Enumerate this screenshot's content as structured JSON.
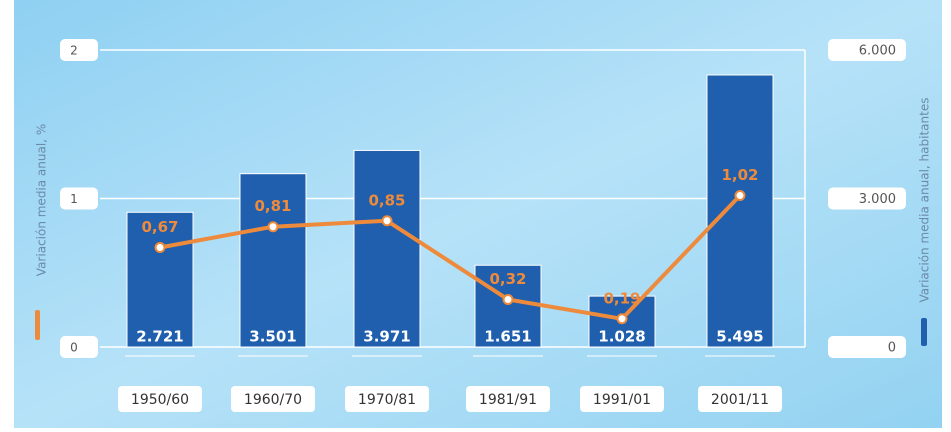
{
  "chart_data": {
    "type": "bar",
    "categories": [
      "1950/60",
      "1960/70",
      "1970/81",
      "1981/91",
      "1991/01",
      "2001/11"
    ],
    "series": [
      {
        "name": "Variación media anual, habitantes",
        "type": "bar",
        "axis": "y2",
        "color": "#1f5fad",
        "values": [
          2721,
          3501,
          3971,
          1651,
          1028,
          5495
        ],
        "value_labels": [
          "2.721",
          "3.501",
          "3.971",
          "1.651",
          "1.028",
          "5.495"
        ]
      },
      {
        "name": "Variación media anual, %",
        "type": "line",
        "color": "#ee8a3c",
        "values": [
          0.67,
          0.81,
          0.85,
          0.32,
          0.19,
          1.02
        ],
        "value_labels": [
          "0,67",
          "0,81",
          "0,85",
          "0,32",
          "0,19",
          "1,02"
        ]
      }
    ],
    "ylabel": "Variación media anual, %",
    "y2label": "Variación media anual, habitantes",
    "ylim": [
      0,
      2
    ],
    "yticks": [
      0,
      1,
      2
    ],
    "y2lim": [
      0,
      6000
    ],
    "y2ticks": [
      0,
      {
        "value": 3000,
        "label": "3.000"
      },
      {
        "value": 6000,
        "label": "6.000"
      }
    ],
    "grid": true
  }
}
